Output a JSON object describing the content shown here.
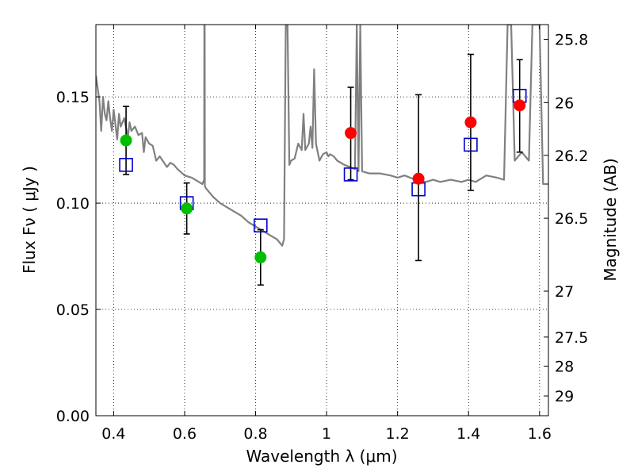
{
  "chart_data": {
    "type": "scatter",
    "xlabel": "Wavelength  λ (μm)",
    "ylabel": "Flux  Fν  ( μJy )",
    "ylabel_right": "Magnitude (AB)",
    "xlim": [
      0.35,
      1.625
    ],
    "ylim": [
      0.0,
      0.184
    ],
    "grid": true,
    "x_ticks": [
      0.4,
      0.6,
      0.8,
      1.0,
      1.2,
      1.4,
      1.6
    ],
    "x_tick_labels": [
      "0.4",
      "0.6",
      "0.8",
      "1",
      "1.2",
      "1.4",
      "1.6"
    ],
    "y_ticks": [
      0.0,
      0.05,
      0.1,
      0.15
    ],
    "y_tick_labels": [
      "0.00",
      "0.05",
      "0.10",
      "0.15"
    ],
    "mag_ticks": [
      {
        "label": "25.8",
        "flux": 0.1771
      },
      {
        "label": "26",
        "flux": 0.1473
      },
      {
        "label": "26.2",
        "flux": 0.1225
      },
      {
        "label": "26.5",
        "flux": 0.0929
      },
      {
        "label": "27",
        "flux": 0.0586
      },
      {
        "label": "27.5",
        "flux": 0.037
      },
      {
        "label": "28",
        "flux": 0.0233
      },
      {
        "label": "29",
        "flux": 0.0093
      }
    ],
    "series": [
      {
        "name": "observed_optical",
        "marker": "circle",
        "color": "#00bf00",
        "x": [
          0.435,
          0.606,
          0.814
        ],
        "y": [
          0.1295,
          0.0975,
          0.0745
        ],
        "yerr_low": [
          0.1135,
          0.0855,
          0.0615
        ],
        "yerr_high": [
          0.1455,
          0.1095,
          0.0875
        ]
      },
      {
        "name": "observed_nir",
        "marker": "circle",
        "color": "#ff0000",
        "x": [
          1.068,
          1.259,
          1.406,
          1.544
        ],
        "y": [
          0.133,
          0.1115,
          0.138,
          0.146
        ],
        "yerr_low": [
          0.111,
          0.073,
          0.106,
          0.124
        ],
        "yerr_high": [
          0.1545,
          0.151,
          0.17,
          0.1675
        ]
      },
      {
        "name": "model_bandpass",
        "marker": "square",
        "color": "#0000cc",
        "x": [
          0.435,
          0.606,
          0.814,
          1.068,
          1.259,
          1.406,
          1.544
        ],
        "y": [
          0.118,
          0.1,
          0.0895,
          0.1135,
          0.1065,
          0.1275,
          0.1505
        ]
      },
      {
        "name": "model_sed",
        "marker": "line",
        "color": "#808080",
        "x": [
          0.35,
          0.36,
          0.365,
          0.37,
          0.375,
          0.38,
          0.385,
          0.39,
          0.395,
          0.4,
          0.41,
          0.415,
          0.42,
          0.43,
          0.44,
          0.445,
          0.45,
          0.46,
          0.47,
          0.48,
          0.485,
          0.49,
          0.5,
          0.51,
          0.52,
          0.53,
          0.55,
          0.56,
          0.57,
          0.58,
          0.6,
          0.62,
          0.64,
          0.65,
          0.655,
          0.6555,
          0.6565,
          0.657,
          0.66,
          0.68,
          0.7,
          0.72,
          0.74,
          0.76,
          0.78,
          0.8,
          0.82,
          0.84,
          0.85,
          0.86,
          0.87,
          0.875,
          0.88,
          0.885,
          0.89,
          0.895,
          0.9,
          0.91,
          0.92,
          0.93,
          0.935,
          0.94,
          0.95,
          0.955,
          0.96,
          0.965,
          0.97,
          0.98,
          0.99,
          1.0,
          1.005,
          1.01,
          1.02,
          1.03,
          1.05,
          1.08,
          1.085,
          1.09,
          1.095,
          1.1,
          1.12,
          1.15,
          1.18,
          1.2,
          1.22,
          1.25,
          1.28,
          1.3,
          1.32,
          1.35,
          1.38,
          1.4,
          1.42,
          1.45,
          1.48,
          1.5,
          1.51,
          1.52,
          1.53,
          1.55,
          1.57,
          1.58,
          1.6,
          1.61,
          1.625
        ],
        "y": [
          0.16,
          0.148,
          0.134,
          0.15,
          0.142,
          0.139,
          0.148,
          0.14,
          0.134,
          0.144,
          0.13,
          0.142,
          0.136,
          0.14,
          0.131,
          0.138,
          0.134,
          0.136,
          0.132,
          0.133,
          0.124,
          0.131,
          0.128,
          0.127,
          0.12,
          0.122,
          0.117,
          0.119,
          0.118,
          0.116,
          0.113,
          0.112,
          0.11,
          0.109,
          0.111,
          0.184,
          0.184,
          0.108,
          0.107,
          0.103,
          0.1,
          0.098,
          0.096,
          0.094,
          0.091,
          0.089,
          0.087,
          0.085,
          0.084,
          0.083,
          0.081,
          0.08,
          0.083,
          0.184,
          0.184,
          0.118,
          0.12,
          0.121,
          0.128,
          0.125,
          0.142,
          0.125,
          0.128,
          0.136,
          0.126,
          0.163,
          0.128,
          0.12,
          0.123,
          0.124,
          0.122,
          0.123,
          0.122,
          0.12,
          0.118,
          0.116,
          0.184,
          0.115,
          0.184,
          0.115,
          0.114,
          0.114,
          0.113,
          0.112,
          0.113,
          0.111,
          0.11,
          0.111,
          0.11,
          0.111,
          0.11,
          0.111,
          0.11,
          0.113,
          0.112,
          0.111,
          0.184,
          0.184,
          0.12,
          0.124,
          0.12,
          0.184,
          0.184,
          0.109,
          0.109
        ]
      }
    ]
  }
}
